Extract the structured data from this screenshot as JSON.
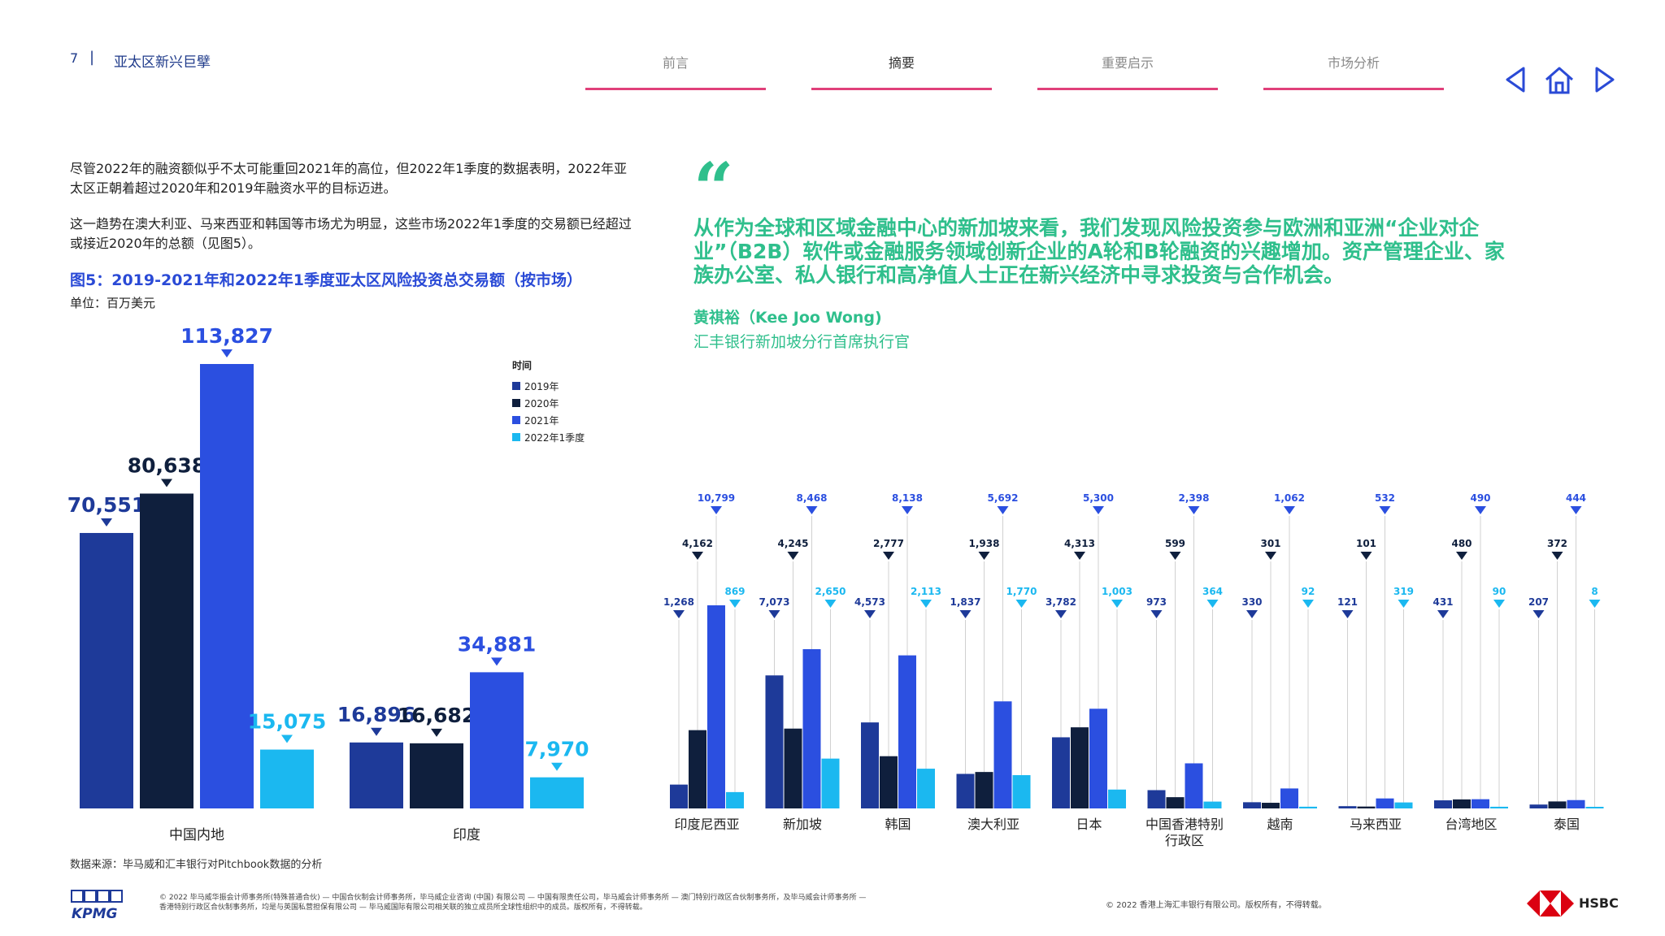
{
  "header": {
    "page_number": "7",
    "separator": "|",
    "report_title": "亚太区新兴巨擘",
    "tabs": [
      {
        "label": "前言",
        "active": false
      },
      {
        "label": "摘要",
        "active": true
      },
      {
        "label": "重要启示",
        "active": false
      },
      {
        "label": "市场分析",
        "active": false
      }
    ],
    "nav_icons": [
      "prev-arrow-icon",
      "home-icon",
      "next-arrow-icon"
    ]
  },
  "body": {
    "paragraph1": "尽管2022年的融资额似乎不太可能重回2021年的高位，但2022年1季度的数据表明，2022年亚太区正朝着超过2020年和2019年融资水平的目标迈进。",
    "paragraph2": "这一趋势在澳大利亚、马来西亚和韩国等市场尤为明显，这些市场2022年1季度的交易额已经超过或接近2020年的总额（见图5）。",
    "figure_title": "图5：2019-2021年和2022年1季度亚太区风险投资总交易额（按市场）",
    "unit": "单位：百万美元",
    "source": "数据来源：毕马威和汇丰银行对Pitchbook数据的分析"
  },
  "quote": {
    "mark": "“",
    "text": "从作为全球和区域金融中心的新加坡来看，我们发现风险投资参与欧洲和亚洲“企业对企业”（B2B）软件或金融服务领域创新企业的A轮和B轮融资的兴趣增加。资产管理企业、家族办公室、私人银行和高净值人士正在新兴经济中寻求投资与合作机会。",
    "name": "黄祺裕（Kee Joo Wong)",
    "role": "汇丰银行新加坡分行首席执行官"
  },
  "colors": {
    "y2019": "#1e3a99",
    "y2020": "#0f1f3d",
    "y2021": "#2b4fe0",
    "y2022q1": "#1bb8f0",
    "accent_green": "#2fbf8c",
    "tab_line": "#e0407a",
    "title_blue": "#2a4ad6"
  },
  "chart_data": [
    {
      "type": "bar",
      "categories": [
        "中国内地",
        "印度"
      ],
      "legend_title": "时间",
      "series": [
        {
          "name": "2019年",
          "values": [
            70551,
            16896
          ]
        },
        {
          "name": "2020年",
          "values": [
            80638,
            16682
          ]
        },
        {
          "name": "2021年",
          "values": [
            113827,
            34881
          ]
        },
        {
          "name": "2022年1季度",
          "values": [
            15075,
            7970
          ]
        }
      ],
      "value_labels": [
        [
          "70,551",
          "80,638",
          "113,827",
          "15,075"
        ],
        [
          "16,896",
          "16,682",
          "34,881",
          "7,970"
        ]
      ],
      "ylim": [
        0,
        113827
      ],
      "grid": false,
      "legend_position": "top-right"
    },
    {
      "type": "bar",
      "categories": [
        "印度尼西亚",
        "新加坡",
        "韩国",
        "澳大利亚",
        "日本",
        "中国香港特别行政区",
        "越南",
        "马来西亚",
        "台湾地区",
        "泰国"
      ],
      "series": [
        {
          "name": "2019年",
          "values": [
            1268,
            7073,
            4573,
            1837,
            3782,
            973,
            330,
            121,
            431,
            207
          ]
        },
        {
          "name": "2020年",
          "values": [
            4162,
            4245,
            2777,
            1938,
            4313,
            599,
            301,
            101,
            480,
            372
          ]
        },
        {
          "name": "2021年",
          "values": [
            10799,
            8468,
            8138,
            5692,
            5300,
            2398,
            1062,
            532,
            490,
            444
          ]
        },
        {
          "name": "2022年1季度",
          "values": [
            869,
            2650,
            2113,
            1770,
            1003,
            364,
            92,
            319,
            90,
            8
          ]
        }
      ],
      "value_labels": [
        [
          "1,268",
          "4,162",
          "10,799",
          "869"
        ],
        [
          "7,073",
          "4,245",
          "8,468",
          "2,650"
        ],
        [
          "4,573",
          "2,777",
          "8,138",
          "2,113"
        ],
        [
          "1,837",
          "1,938",
          "5,692",
          "1,770"
        ],
        [
          "3,782",
          "4,313",
          "5,300",
          "1,003"
        ],
        [
          "973",
          "599",
          "2,398",
          "364"
        ],
        [
          "330",
          "301",
          "1,062",
          "92"
        ],
        [
          "121",
          "101",
          "532",
          "319"
        ],
        [
          "431",
          "480",
          "490",
          "90"
        ],
        [
          "207",
          "372",
          "444",
          "8"
        ]
      ],
      "ylim": [
        0,
        10799
      ],
      "grid": false
    }
  ],
  "footer": {
    "kpmg_logo_text": "KPMG",
    "legal_left": "© 2022 毕马威华振会计师事务所(特殊普通合伙) — 中国合伙制会计师事务所，毕马威企业咨询 (中国) 有限公司 — 中国有限责任公司，毕马威会计师事务所 — 澳门特别行政区合伙制事务所，及毕马威会计师事务所 — 香港特别行政区合伙制事务所，均是与英国私营担保有限公司 — 毕马威国际有限公司相关联的独立成员所全球性组织中的成员。版权所有，不得转载。",
    "legal_right": "© 2022 香港上海汇丰银行有限公司。版权所有，不得转载。",
    "hsbc_text": "HSBC"
  }
}
